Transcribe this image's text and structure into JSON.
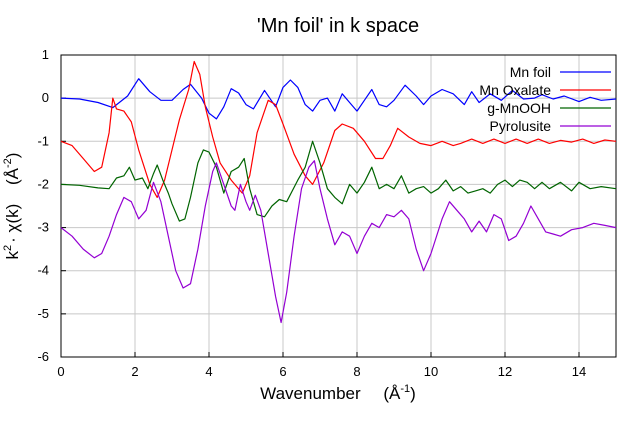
{
  "chart_data": {
    "type": "line",
    "title": "'Mn foil' in k space",
    "xlabel": {
      "main": "Wavenumber",
      "unit": "(Å",
      "sup": "-1",
      "close": ")"
    },
    "ylabel": {
      "main": "k",
      "sup1": "2",
      "mid": "· χ(k)",
      "unit": "(Å",
      "sup2": "-2",
      "close": ")"
    },
    "xlim": [
      0,
      15
    ],
    "ylim": [
      -6,
      1
    ],
    "xticks": [
      0,
      2,
      4,
      6,
      8,
      10,
      12,
      14
    ],
    "yticks": [
      1,
      0,
      -1,
      -2,
      -3,
      -4,
      -5,
      -6
    ],
    "grid": true,
    "legend_position": "top-right",
    "series": [
      {
        "name": "Mn foil",
        "color": "#0000ff",
        "points": [
          [
            0,
            0
          ],
          [
            0.5,
            -0.02
          ],
          [
            1,
            -0.1
          ],
          [
            1.4,
            -0.22
          ],
          [
            1.8,
            0.05
          ],
          [
            2.1,
            0.45
          ],
          [
            2.4,
            0.15
          ],
          [
            2.7,
            -0.05
          ],
          [
            3.0,
            -0.05
          ],
          [
            3.3,
            0.2
          ],
          [
            3.5,
            0.32
          ],
          [
            3.8,
            0.0
          ],
          [
            4.0,
            -0.35
          ],
          [
            4.2,
            -0.48
          ],
          [
            4.4,
            -0.2
          ],
          [
            4.6,
            0.22
          ],
          [
            4.8,
            0.12
          ],
          [
            5.0,
            -0.15
          ],
          [
            5.2,
            -0.25
          ],
          [
            5.5,
            0.18
          ],
          [
            5.8,
            -0.2
          ],
          [
            6.0,
            0.25
          ],
          [
            6.2,
            0.42
          ],
          [
            6.4,
            0.25
          ],
          [
            6.6,
            -0.15
          ],
          [
            6.8,
            -0.3
          ],
          [
            7.0,
            -0.05
          ],
          [
            7.2,
            0.0
          ],
          [
            7.4,
            -0.3
          ],
          [
            7.6,
            0.1
          ],
          [
            7.8,
            -0.1
          ],
          [
            8.0,
            -0.3
          ],
          [
            8.2,
            -0.05
          ],
          [
            8.4,
            0.2
          ],
          [
            8.6,
            -0.15
          ],
          [
            8.8,
            -0.2
          ],
          [
            9.0,
            -0.05
          ],
          [
            9.3,
            0.3
          ],
          [
            9.6,
            0.05
          ],
          [
            9.8,
            -0.15
          ],
          [
            10.0,
            0.05
          ],
          [
            10.3,
            0.2
          ],
          [
            10.6,
            0.1
          ],
          [
            10.9,
            -0.15
          ],
          [
            11.1,
            0.15
          ],
          [
            11.3,
            -0.1
          ],
          [
            11.6,
            0.1
          ],
          [
            11.9,
            -0.05
          ],
          [
            12.2,
            0.18
          ],
          [
            12.5,
            -0.02
          ],
          [
            12.8,
            0.0
          ],
          [
            13.0,
            0.08
          ],
          [
            13.3,
            -0.02
          ],
          [
            13.6,
            0.05
          ],
          [
            14.0,
            -0.08
          ],
          [
            14.3,
            0.02
          ],
          [
            14.6,
            -0.05
          ],
          [
            15.0,
            -0.02
          ]
        ]
      },
      {
        "name": "Mn Oxalate",
        "color": "#ff0000",
        "points": [
          [
            0,
            -1.0
          ],
          [
            0.3,
            -1.1
          ],
          [
            0.6,
            -1.4
          ],
          [
            0.9,
            -1.7
          ],
          [
            1.1,
            -1.6
          ],
          [
            1.3,
            -0.8
          ],
          [
            1.4,
            0.0
          ],
          [
            1.5,
            -0.25
          ],
          [
            1.7,
            -0.3
          ],
          [
            1.9,
            -0.55
          ],
          [
            2.1,
            -1.2
          ],
          [
            2.4,
            -2.0
          ],
          [
            2.6,
            -2.3
          ],
          [
            2.8,
            -1.9
          ],
          [
            3.0,
            -1.2
          ],
          [
            3.2,
            -0.5
          ],
          [
            3.45,
            0.2
          ],
          [
            3.6,
            0.85
          ],
          [
            3.75,
            0.55
          ],
          [
            3.9,
            -0.2
          ],
          [
            4.1,
            -0.9
          ],
          [
            4.3,
            -1.5
          ],
          [
            4.6,
            -1.9
          ],
          [
            4.9,
            -2.2
          ],
          [
            5.1,
            -1.8
          ],
          [
            5.3,
            -0.8
          ],
          [
            5.6,
            -0.05
          ],
          [
            5.8,
            -0.15
          ],
          [
            6.0,
            -0.6
          ],
          [
            6.3,
            -1.3
          ],
          [
            6.6,
            -1.8
          ],
          [
            6.8,
            -2.0
          ],
          [
            7.1,
            -1.5
          ],
          [
            7.4,
            -0.75
          ],
          [
            7.6,
            -0.6
          ],
          [
            7.9,
            -0.7
          ],
          [
            8.2,
            -1.0
          ],
          [
            8.5,
            -1.4
          ],
          [
            8.7,
            -1.4
          ],
          [
            8.9,
            -1.1
          ],
          [
            9.1,
            -0.7
          ],
          [
            9.4,
            -0.9
          ],
          [
            9.7,
            -1.05
          ],
          [
            10.0,
            -1.1
          ],
          [
            10.3,
            -1.0
          ],
          [
            10.6,
            -1.1
          ],
          [
            10.8,
            -1.05
          ],
          [
            11.1,
            -0.95
          ],
          [
            11.4,
            -1.05
          ],
          [
            11.7,
            -0.95
          ],
          [
            12.0,
            -1.05
          ],
          [
            12.3,
            -0.95
          ],
          [
            12.6,
            -1.05
          ],
          [
            12.9,
            -0.95
          ],
          [
            13.2,
            -1.05
          ],
          [
            13.5,
            -0.98
          ],
          [
            13.8,
            -1.02
          ],
          [
            14.1,
            -0.95
          ],
          [
            14.4,
            -1.05
          ],
          [
            14.7,
            -0.97
          ],
          [
            15.0,
            -1.0
          ]
        ]
      },
      {
        "name": "g-MnOOH",
        "color": "#006400",
        "points": [
          [
            0,
            -2.0
          ],
          [
            0.5,
            -2.02
          ],
          [
            1.0,
            -2.08
          ],
          [
            1.3,
            -2.1
          ],
          [
            1.5,
            -1.85
          ],
          [
            1.7,
            -1.8
          ],
          [
            1.85,
            -1.6
          ],
          [
            2.0,
            -1.9
          ],
          [
            2.2,
            -1.85
          ],
          [
            2.35,
            -2.1
          ],
          [
            2.5,
            -1.75
          ],
          [
            2.6,
            -1.55
          ],
          [
            2.75,
            -1.9
          ],
          [
            2.9,
            -2.2
          ],
          [
            3.0,
            -2.45
          ],
          [
            3.2,
            -2.85
          ],
          [
            3.35,
            -2.8
          ],
          [
            3.5,
            -2.3
          ],
          [
            3.7,
            -1.5
          ],
          [
            3.85,
            -1.2
          ],
          [
            4.0,
            -1.25
          ],
          [
            4.2,
            -1.6
          ],
          [
            4.4,
            -2.2
          ],
          [
            4.6,
            -1.7
          ],
          [
            4.8,
            -1.6
          ],
          [
            4.95,
            -1.4
          ],
          [
            5.1,
            -2.1
          ],
          [
            5.3,
            -2.7
          ],
          [
            5.5,
            -2.75
          ],
          [
            5.7,
            -2.5
          ],
          [
            5.9,
            -2.35
          ],
          [
            6.1,
            -2.4
          ],
          [
            6.4,
            -1.9
          ],
          [
            6.6,
            -1.6
          ],
          [
            6.8,
            -1.0
          ],
          [
            7.0,
            -1.5
          ],
          [
            7.2,
            -2.1
          ],
          [
            7.4,
            -2.3
          ],
          [
            7.6,
            -2.45
          ],
          [
            7.8,
            -2.0
          ],
          [
            8.0,
            -2.2
          ],
          [
            8.2,
            -1.95
          ],
          [
            8.4,
            -1.6
          ],
          [
            8.6,
            -2.1
          ],
          [
            8.8,
            -2.0
          ],
          [
            9.0,
            -2.1
          ],
          [
            9.2,
            -1.8
          ],
          [
            9.4,
            -2.2
          ],
          [
            9.6,
            -2.1
          ],
          [
            9.8,
            -2.05
          ],
          [
            10.0,
            -2.2
          ],
          [
            10.2,
            -2.1
          ],
          [
            10.4,
            -1.9
          ],
          [
            10.6,
            -2.15
          ],
          [
            10.8,
            -2.05
          ],
          [
            11.0,
            -2.2
          ],
          [
            11.2,
            -2.15
          ],
          [
            11.4,
            -2.1
          ],
          [
            11.6,
            -2.2
          ],
          [
            11.8,
            -2.0
          ],
          [
            12.0,
            -1.9
          ],
          [
            12.2,
            -2.05
          ],
          [
            12.4,
            -1.9
          ],
          [
            12.6,
            -1.95
          ],
          [
            12.8,
            -2.1
          ],
          [
            13.0,
            -1.95
          ],
          [
            13.2,
            -2.1
          ],
          [
            13.5,
            -1.95
          ],
          [
            13.8,
            -2.15
          ],
          [
            14.0,
            -1.95
          ],
          [
            14.3,
            -2.1
          ],
          [
            14.6,
            -2.05
          ],
          [
            15.0,
            -2.1
          ]
        ]
      },
      {
        "name": "Pyrolusite",
        "color": "#9400d3",
        "points": [
          [
            0,
            -3.0
          ],
          [
            0.3,
            -3.2
          ],
          [
            0.6,
            -3.5
          ],
          [
            0.9,
            -3.7
          ],
          [
            1.1,
            -3.6
          ],
          [
            1.3,
            -3.2
          ],
          [
            1.5,
            -2.7
          ],
          [
            1.7,
            -2.3
          ],
          [
            1.9,
            -2.4
          ],
          [
            2.1,
            -2.8
          ],
          [
            2.3,
            -2.6
          ],
          [
            2.5,
            -1.95
          ],
          [
            2.7,
            -2.4
          ],
          [
            2.9,
            -3.2
          ],
          [
            3.1,
            -4.0
          ],
          [
            3.3,
            -4.4
          ],
          [
            3.5,
            -4.3
          ],
          [
            3.7,
            -3.5
          ],
          [
            3.9,
            -2.5
          ],
          [
            4.1,
            -1.7
          ],
          [
            4.2,
            -1.5
          ],
          [
            4.4,
            -2.0
          ],
          [
            4.6,
            -2.5
          ],
          [
            4.7,
            -2.6
          ],
          [
            4.85,
            -2.0
          ],
          [
            5.0,
            -2.4
          ],
          [
            5.1,
            -2.6
          ],
          [
            5.25,
            -2.25
          ],
          [
            5.4,
            -2.6
          ],
          [
            5.6,
            -3.6
          ],
          [
            5.8,
            -4.6
          ],
          [
            5.95,
            -5.2
          ],
          [
            6.1,
            -4.5
          ],
          [
            6.3,
            -3.2
          ],
          [
            6.5,
            -2.1
          ],
          [
            6.7,
            -1.6
          ],
          [
            6.85,
            -1.45
          ],
          [
            7.0,
            -2.1
          ],
          [
            7.2,
            -2.8
          ],
          [
            7.4,
            -3.4
          ],
          [
            7.6,
            -3.1
          ],
          [
            7.8,
            -3.2
          ],
          [
            8.0,
            -3.6
          ],
          [
            8.2,
            -3.2
          ],
          [
            8.4,
            -2.9
          ],
          [
            8.6,
            -3.0
          ],
          [
            8.8,
            -2.7
          ],
          [
            9.0,
            -2.75
          ],
          [
            9.2,
            -2.6
          ],
          [
            9.4,
            -2.8
          ],
          [
            9.6,
            -3.5
          ],
          [
            9.8,
            -4.0
          ],
          [
            10.0,
            -3.6
          ],
          [
            10.3,
            -2.8
          ],
          [
            10.5,
            -2.4
          ],
          [
            10.7,
            -2.6
          ],
          [
            10.9,
            -2.8
          ],
          [
            11.1,
            -3.1
          ],
          [
            11.3,
            -2.85
          ],
          [
            11.5,
            -3.1
          ],
          [
            11.7,
            -2.7
          ],
          [
            11.9,
            -2.8
          ],
          [
            12.1,
            -3.3
          ],
          [
            12.3,
            -3.2
          ],
          [
            12.5,
            -2.9
          ],
          [
            12.7,
            -2.5
          ],
          [
            12.9,
            -2.8
          ],
          [
            13.1,
            -3.1
          ],
          [
            13.3,
            -3.15
          ],
          [
            13.5,
            -3.2
          ],
          [
            13.8,
            -3.05
          ],
          [
            14.1,
            -3.0
          ],
          [
            14.4,
            -2.9
          ],
          [
            14.7,
            -2.95
          ],
          [
            15.0,
            -3.0
          ]
        ]
      }
    ]
  }
}
